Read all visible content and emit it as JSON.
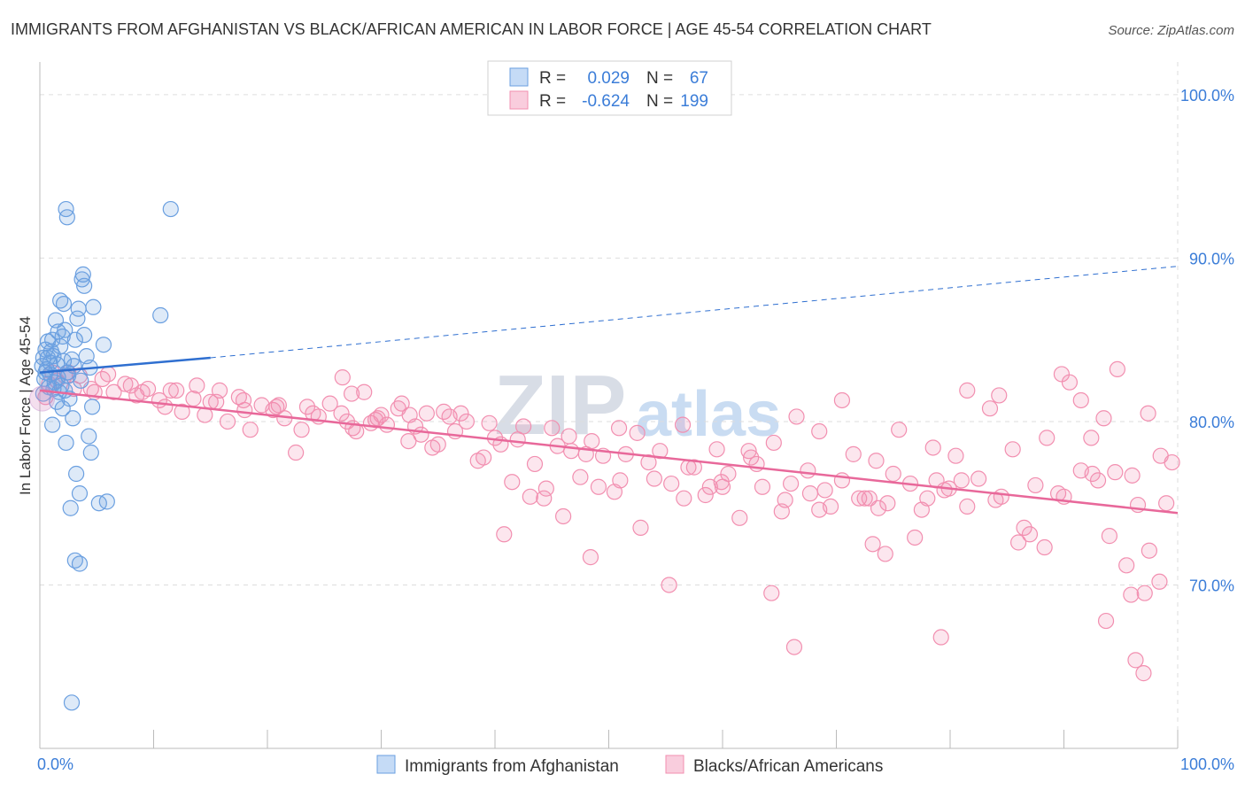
{
  "title": "IMMIGRANTS FROM AFGHANISTAN VS BLACK/AFRICAN AMERICAN IN LABOR FORCE | AGE 45-54 CORRELATION CHART",
  "source": "Source: ZipAtlas.com",
  "watermark": {
    "zip": "ZIP",
    "atlas": "atlas"
  },
  "chart_data": {
    "type": "scatter",
    "title": "IMMIGRANTS FROM AFGHANISTAN VS BLACK/AFRICAN AMERICAN IN LABOR FORCE | AGE 45-54 CORRELATION CHART",
    "ylabel": "In Labor Force | Age 45-54",
    "xlabel": "",
    "xlim": [
      0,
      100
    ],
    "ylim": [
      60,
      102
    ],
    "y_ticks": [
      70,
      80,
      90,
      100
    ],
    "y_tick_labels": [
      "70.0%",
      "80.0%",
      "90.0%",
      "100.0%"
    ],
    "x_tick_labels": [
      "0.0%",
      "100.0%"
    ],
    "grid": true,
    "legend_stats": [
      {
        "r_label": "R =",
        "r": "0.029",
        "n_label": "N =",
        "n": "67"
      },
      {
        "r_label": "R =",
        "r": "-0.624",
        "n_label": "N =",
        "n": "199"
      }
    ],
    "series": [
      {
        "name": "Immigrants from Afghanistan",
        "color": "#6a9fe0",
        "line_color": "#2f6fd0",
        "trend": {
          "x0": 0,
          "y0": 83.0,
          "x1": 15,
          "y1": 83.9,
          "dashed_to_x": 100,
          "dashed_to_y": 89.5
        },
        "points": [
          [
            2.3,
            93.0
          ],
          [
            2.4,
            92.5
          ],
          [
            11.5,
            93.0
          ],
          [
            3.8,
            89.0
          ],
          [
            3.7,
            88.7
          ],
          [
            3.9,
            88.3
          ],
          [
            1.8,
            87.4
          ],
          [
            2.1,
            87.2
          ],
          [
            3.4,
            86.9
          ],
          [
            4.7,
            87.0
          ],
          [
            1.4,
            86.2
          ],
          [
            3.3,
            86.3
          ],
          [
            1.6,
            85.5
          ],
          [
            2.2,
            85.6
          ],
          [
            1.1,
            85.0
          ],
          [
            2.0,
            85.2
          ],
          [
            3.1,
            85.0
          ],
          [
            3.9,
            85.3
          ],
          [
            0.5,
            84.4
          ],
          [
            1.0,
            84.3
          ],
          [
            0.3,
            83.9
          ],
          [
            0.7,
            83.9
          ],
          [
            1.2,
            84.0
          ],
          [
            2.8,
            83.8
          ],
          [
            5.6,
            84.7
          ],
          [
            0.2,
            83.4
          ],
          [
            0.6,
            83.2
          ],
          [
            1.5,
            83.5
          ],
          [
            2.4,
            83.0
          ],
          [
            4.4,
            83.3
          ],
          [
            0.4,
            82.6
          ],
          [
            0.9,
            82.9
          ],
          [
            1.3,
            82.4
          ],
          [
            1.9,
            82.2
          ],
          [
            3.6,
            82.5
          ],
          [
            0.8,
            82.1
          ],
          [
            1.7,
            81.8
          ],
          [
            2.6,
            81.4
          ],
          [
            0.3,
            81.7
          ],
          [
            1.5,
            81.2
          ],
          [
            2.0,
            80.8
          ],
          [
            4.6,
            80.9
          ],
          [
            2.9,
            80.2
          ],
          [
            1.1,
            79.8
          ],
          [
            4.3,
            79.1
          ],
          [
            2.3,
            78.7
          ],
          [
            4.5,
            78.1
          ],
          [
            3.2,
            76.8
          ],
          [
            3.5,
            75.6
          ],
          [
            5.2,
            75.0
          ],
          [
            5.9,
            75.1
          ],
          [
            2.7,
            74.7
          ],
          [
            3.1,
            71.5
          ],
          [
            3.5,
            71.3
          ],
          [
            2.8,
            62.8
          ],
          [
            10.6,
            86.5
          ],
          [
            0.9,
            83.6
          ],
          [
            1.6,
            82.7
          ],
          [
            2.1,
            83.7
          ],
          [
            0.5,
            83.0
          ],
          [
            1.2,
            82.0
          ],
          [
            2.5,
            82.8
          ],
          [
            3.0,
            83.4
          ],
          [
            1.8,
            84.6
          ],
          [
            0.7,
            84.9
          ],
          [
            4.1,
            84.0
          ],
          [
            2.2,
            81.9
          ]
        ]
      },
      {
        "name": "Blacks/African Americans",
        "color": "#f28fb0",
        "line_color": "#e8689a",
        "trend": {
          "x0": 0,
          "y0": 81.9,
          "x1": 100,
          "y1": 74.4
        },
        "points": [
          [
            0.5,
            81.5
          ],
          [
            1.5,
            82.5
          ],
          [
            2.5,
            83.0
          ],
          [
            3.5,
            82.8
          ],
          [
            4.5,
            82.0
          ],
          [
            5.5,
            82.6
          ],
          [
            6.5,
            81.8
          ],
          [
            7.5,
            82.3
          ],
          [
            8.5,
            81.6
          ],
          [
            9.5,
            82.0
          ],
          [
            10.5,
            81.3
          ],
          [
            11.5,
            81.9
          ],
          [
            12.5,
            80.6
          ],
          [
            13.5,
            81.4
          ],
          [
            14.5,
            80.4
          ],
          [
            15.5,
            81.2
          ],
          [
            16.5,
            80.0
          ],
          [
            17.5,
            81.5
          ],
          [
            18.5,
            79.5
          ],
          [
            19.5,
            81.0
          ],
          [
            20.5,
            80.7
          ],
          [
            21.5,
            80.2
          ],
          [
            22.5,
            78.1
          ],
          [
            23.5,
            80.9
          ],
          [
            24.5,
            80.3
          ],
          [
            25.5,
            81.1
          ],
          [
            26.5,
            80.5
          ],
          [
            27.5,
            79.6
          ],
          [
            28.5,
            81.8
          ],
          [
            29.5,
            80.1
          ],
          [
            30.5,
            79.8
          ],
          [
            31.5,
            80.8
          ],
          [
            32.5,
            80.4
          ],
          [
            33.5,
            79.2
          ],
          [
            34.5,
            78.4
          ],
          [
            35.5,
            80.6
          ],
          [
            36.5,
            79.4
          ],
          [
            37.5,
            80.0
          ],
          [
            38.5,
            77.6
          ],
          [
            39.5,
            79.9
          ],
          [
            40.5,
            78.6
          ],
          [
            41.5,
            76.3
          ],
          [
            42.5,
            79.7
          ],
          [
            43.5,
            77.4
          ],
          [
            44.5,
            75.9
          ],
          [
            45.5,
            78.5
          ],
          [
            46.5,
            79.1
          ],
          [
            47.5,
            76.6
          ],
          [
            48.5,
            78.8
          ],
          [
            49.5,
            77.9
          ],
          [
            50.5,
            75.7
          ],
          [
            51.5,
            78.0
          ],
          [
            52.5,
            79.3
          ],
          [
            53.5,
            77.5
          ],
          [
            54.5,
            78.2
          ],
          [
            55.5,
            76.2
          ],
          [
            56.5,
            79.8
          ],
          [
            57.5,
            77.2
          ],
          [
            58.5,
            75.5
          ],
          [
            59.5,
            78.3
          ],
          [
            60.5,
            76.8
          ],
          [
            61.5,
            74.1
          ],
          [
            62.5,
            77.8
          ],
          [
            63.5,
            76.0
          ],
          [
            64.5,
            78.7
          ],
          [
            65.5,
            75.2
          ],
          [
            66.5,
            80.3
          ],
          [
            67.5,
            77.0
          ],
          [
            68.5,
            79.4
          ],
          [
            69.5,
            74.8
          ],
          [
            70.5,
            76.4
          ],
          [
            71.5,
            78.0
          ],
          [
            72.5,
            75.3
          ],
          [
            73.5,
            77.6
          ],
          [
            74.5,
            75.0
          ],
          [
            75.5,
            79.5
          ],
          [
            76.5,
            76.2
          ],
          [
            77.5,
            74.6
          ],
          [
            78.5,
            78.4
          ],
          [
            79.5,
            75.8
          ],
          [
            80.5,
            77.9
          ],
          [
            81.5,
            74.8
          ],
          [
            82.5,
            76.5
          ],
          [
            83.5,
            80.8
          ],
          [
            84.5,
            75.4
          ],
          [
            85.5,
            78.3
          ],
          [
            86.5,
            73.5
          ],
          [
            87.5,
            76.1
          ],
          [
            88.5,
            79.0
          ],
          [
            89.5,
            75.6
          ],
          [
            90.5,
            82.4
          ],
          [
            91.5,
            77.0
          ],
          [
            92.5,
            76.8
          ],
          [
            93.5,
            80.2
          ],
          [
            94.5,
            76.9
          ],
          [
            95.5,
            71.2
          ],
          [
            96.5,
            74.9
          ],
          [
            97.5,
            72.1
          ],
          [
            98.5,
            77.9
          ],
          [
            99.5,
            77.5
          ],
          [
            3.0,
            82.0
          ],
          [
            6.0,
            82.9
          ],
          [
            9.0,
            81.8
          ],
          [
            12.0,
            81.9
          ],
          [
            15.0,
            81.2
          ],
          [
            18.0,
            80.7
          ],
          [
            21.0,
            81.0
          ],
          [
            24.0,
            80.5
          ],
          [
            27.0,
            80.0
          ],
          [
            30.0,
            80.4
          ],
          [
            33.0,
            79.7
          ],
          [
            36.0,
            80.3
          ],
          [
            39.0,
            77.8
          ],
          [
            42.0,
            78.9
          ],
          [
            45.0,
            79.6
          ],
          [
            48.0,
            78.0
          ],
          [
            51.0,
            76.4
          ],
          [
            54.0,
            76.5
          ],
          [
            57.0,
            77.2
          ],
          [
            60.0,
            76.0
          ],
          [
            63.0,
            77.4
          ],
          [
            66.0,
            76.2
          ],
          [
            69.0,
            75.8
          ],
          [
            72.0,
            75.3
          ],
          [
            75.0,
            76.8
          ],
          [
            78.0,
            75.3
          ],
          [
            81.0,
            76.4
          ],
          [
            84.0,
            75.2
          ],
          [
            87.0,
            73.1
          ],
          [
            90.0,
            75.4
          ],
          [
            93.0,
            76.4
          ],
          [
            96.0,
            76.7
          ],
          [
            99.0,
            75.0
          ],
          [
            26.6,
            82.7
          ],
          [
            27.4,
            81.7
          ],
          [
            29.1,
            79.9
          ],
          [
            31.8,
            81.1
          ],
          [
            34.0,
            80.5
          ],
          [
            40.8,
            73.1
          ],
          [
            44.3,
            75.3
          ],
          [
            46.7,
            78.2
          ],
          [
            50.9,
            79.6
          ],
          [
            55.3,
            70.0
          ],
          [
            59.9,
            76.3
          ],
          [
            64.3,
            69.5
          ],
          [
            68.5,
            74.6
          ],
          [
            73.7,
            74.7
          ],
          [
            74.3,
            71.9
          ],
          [
            73.2,
            72.5
          ],
          [
            81.5,
            81.9
          ],
          [
            89.8,
            82.9
          ],
          [
            92.4,
            79.0
          ],
          [
            94.7,
            83.2
          ],
          [
            97.1,
            69.5
          ],
          [
            93.7,
            67.8
          ],
          [
            95.9,
            69.4
          ],
          [
            98.4,
            70.2
          ],
          [
            97.4,
            80.5
          ],
          [
            91.5,
            81.3
          ],
          [
            84.3,
            81.6
          ],
          [
            79.9,
            75.9
          ],
          [
            76.9,
            72.9
          ],
          [
            78.8,
            76.4
          ],
          [
            72.9,
            75.3
          ],
          [
            70.5,
            81.3
          ],
          [
            67.7,
            75.6
          ],
          [
            65.2,
            74.5
          ],
          [
            62.3,
            78.2
          ],
          [
            58.9,
            76.0
          ],
          [
            56.6,
            75.3
          ],
          [
            52.8,
            73.5
          ],
          [
            49.1,
            76.0
          ],
          [
            46.0,
            74.2
          ],
          [
            43.1,
            75.4
          ],
          [
            40.0,
            79.0
          ],
          [
            37.0,
            80.5
          ],
          [
            35.0,
            78.6
          ],
          [
            32.4,
            78.8
          ],
          [
            29.7,
            80.2
          ],
          [
            27.8,
            79.4
          ],
          [
            23.0,
            79.5
          ],
          [
            20.8,
            80.9
          ],
          [
            17.9,
            81.3
          ],
          [
            15.8,
            81.9
          ],
          [
            13.8,
            82.2
          ],
          [
            11.0,
            80.9
          ],
          [
            8.0,
            82.2
          ],
          [
            4.8,
            81.8
          ],
          [
            2.2,
            82.8
          ],
          [
            0.8,
            82.3
          ],
          [
            1.1,
            83.0
          ],
          [
            79.2,
            66.8
          ],
          [
            96.3,
            65.4
          ],
          [
            97.0,
            64.6
          ],
          [
            48.4,
            71.7
          ],
          [
            86.0,
            72.6
          ],
          [
            88.3,
            72.3
          ],
          [
            94.0,
            73.0
          ],
          [
            66.3,
            66.2
          ]
        ]
      }
    ]
  },
  "bottom_legend": [
    {
      "label": "Immigrants from Afghanistan"
    },
    {
      "label": "Blacks/African Americans"
    }
  ]
}
